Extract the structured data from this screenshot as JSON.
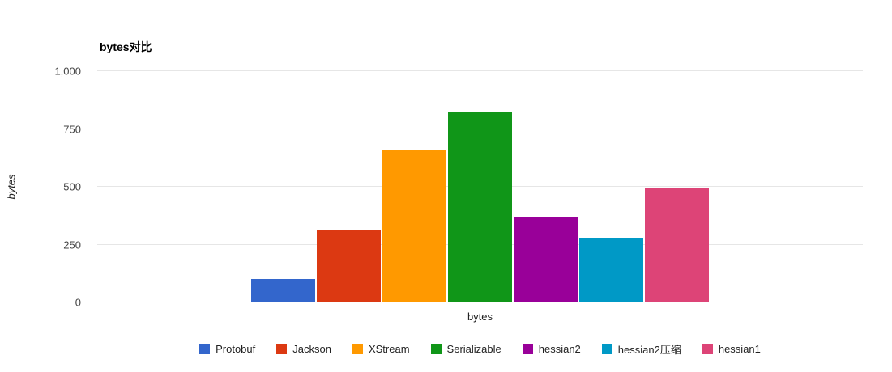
{
  "chart_data": {
    "type": "bar",
    "title": "bytes对比",
    "ylabel": "bytes",
    "xlabel": "bytes",
    "ylim": [
      0,
      1000
    ],
    "yticks": [
      0,
      250,
      500,
      750,
      1000
    ],
    "ytick_labels": [
      "0",
      "250",
      "500",
      "750",
      "1,000"
    ],
    "categories": [
      "bytes"
    ],
    "series": [
      {
        "name": "Protobuf",
        "color": "#3366cc",
        "values": [
          100
        ]
      },
      {
        "name": "Jackson",
        "color": "#dc3912",
        "values": [
          310
        ]
      },
      {
        "name": "XStream",
        "color": "#ff9900",
        "values": [
          660
        ]
      },
      {
        "name": "Serializable",
        "color": "#109618",
        "values": [
          820
        ]
      },
      {
        "name": "hessian2",
        "color": "#990099",
        "values": [
          370
        ]
      },
      {
        "name": "hessian2压缩",
        "color": "#0099c6",
        "values": [
          280
        ]
      },
      {
        "name": "hessian1",
        "color": "#dd4477",
        "values": [
          495
        ]
      }
    ],
    "grid": true,
    "legend_position": "bottom"
  }
}
